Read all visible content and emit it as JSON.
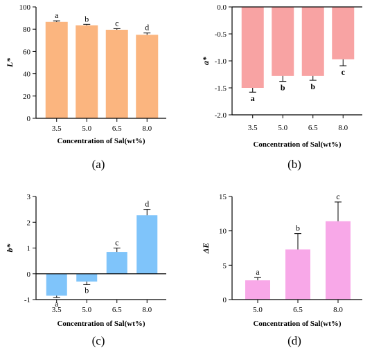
{
  "chart_data": [
    {
      "type": "bar",
      "panel_label": "(a)",
      "ylabel": "L*",
      "xlabel": "Concentration of Sal(wt%)",
      "categories": [
        "3.5",
        "5.0",
        "6.5",
        "8.0"
      ],
      "values": [
        86.5,
        83.5,
        79.5,
        75.0
      ],
      "errors": [
        1.0,
        0.8,
        1.0,
        1.6
      ],
      "sig_letters": [
        "a",
        "b",
        "c",
        "d"
      ],
      "ylim": [
        0,
        100
      ],
      "yticks": [
        "0",
        "20",
        "40",
        "60",
        "80",
        "100"
      ],
      "color": "#FBB57F"
    },
    {
      "type": "bar",
      "panel_label": "(b)",
      "ylabel": "a*",
      "xlabel": "Concentration of Sal(wt%)",
      "categories": [
        "3.5",
        "5.0",
        "6.5",
        "8.0"
      ],
      "values": [
        -1.5,
        -1.28,
        -1.28,
        -0.97
      ],
      "errors": [
        0.08,
        0.1,
        0.08,
        0.12
      ],
      "sig_letters": [
        "a",
        "b",
        "b",
        "c"
      ],
      "ylim": [
        -2.0,
        0.0
      ],
      "yticks": [
        "0.0",
        "-0.5",
        "-1.0",
        "-1.5",
        "-2.0"
      ],
      "color": "#F8A3A3"
    },
    {
      "type": "bar",
      "panel_label": "(c)",
      "ylabel": "b*",
      "xlabel": "Concentration of Sal(wt%)",
      "categories": [
        "3.5",
        "5.0",
        "6.5",
        "8.0"
      ],
      "values": [
        -0.85,
        -0.3,
        0.85,
        2.27
      ],
      "errors": [
        0.07,
        0.12,
        0.15,
        0.23
      ],
      "sig_letters": [
        "a",
        "b",
        "c",
        "d"
      ],
      "ylim": [
        -1,
        3
      ],
      "yticks": [
        "3",
        "2",
        "1",
        "0",
        "-1"
      ],
      "color": "#7FC4FA"
    },
    {
      "type": "bar",
      "panel_label": "(d)",
      "ylabel": "ΔE",
      "xlabel": "Concentration of Sal(wt%)",
      "categories": [
        "5.0",
        "6.5",
        "8.0"
      ],
      "values": [
        2.8,
        7.3,
        11.4
      ],
      "errors": [
        0.4,
        2.3,
        2.8
      ],
      "sig_letters": [
        "a",
        "b",
        "c"
      ],
      "ylim": [
        0,
        15
      ],
      "yticks": [
        "15",
        "10",
        "5",
        "0"
      ],
      "color": "#F8A8E8"
    }
  ]
}
